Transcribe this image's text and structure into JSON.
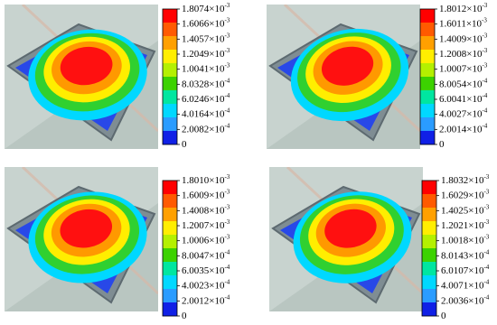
{
  "colorbar_colors": [
    "#ff0000",
    "#ff5a00",
    "#ffa000",
    "#ffee00",
    "#b4f000",
    "#3cd200",
    "#00e6a0",
    "#00d8ff",
    "#2a9cff",
    "#1020e6"
  ],
  "panels": [
    {
      "labels": [
        {
          "text": "1.8074×10",
          "sup": "-3"
        },
        {
          "text": "1.6066×10",
          "sup": "-3"
        },
        {
          "text": "1.4057×10",
          "sup": "-3"
        },
        {
          "text": "1.2049×10",
          "sup": "-3"
        },
        {
          "text": "1.0041×10",
          "sup": "-3"
        },
        {
          "text": "8.0328×10",
          "sup": "-4"
        },
        {
          "text": "6.0246×10",
          "sup": "-4"
        },
        {
          "text": "4.0164×10",
          "sup": "-4"
        },
        {
          "text": "2.0082×10",
          "sup": "-4"
        },
        {
          "text": "0"
        }
      ]
    },
    {
      "labels": [
        {
          "text": "1.8012×10",
          "sup": "-3"
        },
        {
          "text": "1.6011×10",
          "sup": "-3"
        },
        {
          "text": "1.4009×10",
          "sup": "-3"
        },
        {
          "text": "1.2008×10",
          "sup": "-3"
        },
        {
          "text": "1.0007×10",
          "sup": "-3"
        },
        {
          "text": "8.0054×10",
          "sup": "-4"
        },
        {
          "text": "6.0041×10",
          "sup": "-4"
        },
        {
          "text": "4.0027×10",
          "sup": "-4"
        },
        {
          "text": "2.0014×10",
          "sup": "-4"
        },
        {
          "text": "0"
        }
      ]
    },
    {
      "labels": [
        {
          "text": "1.8010×10",
          "sup": "-3"
        },
        {
          "text": "1.6009×10",
          "sup": "-3"
        },
        {
          "text": "1.4008×10",
          "sup": "-3"
        },
        {
          "text": "1.2007×10",
          "sup": "-3"
        },
        {
          "text": "1.0006×10",
          "sup": "-3"
        },
        {
          "text": "8.0047×10",
          "sup": "-4"
        },
        {
          "text": "6.0035×10",
          "sup": "-4"
        },
        {
          "text": "4.0023×10",
          "sup": "-4"
        },
        {
          "text": "2.0012×10",
          "sup": "-4"
        },
        {
          "text": "0"
        }
      ]
    },
    {
      "labels": [
        {
          "text": "1.8032×10",
          "sup": "-3"
        },
        {
          "text": "1.6029×10",
          "sup": "-3"
        },
        {
          "text": "1.4025×10",
          "sup": "-3"
        },
        {
          "text": "1.2021×10",
          "sup": "-3"
        },
        {
          "text": "1.0018×10",
          "sup": "-3"
        },
        {
          "text": "8.0143×10",
          "sup": "-4"
        },
        {
          "text": "6.0107×10",
          "sup": "-4"
        },
        {
          "text": "4.0071×10",
          "sup": "-4"
        },
        {
          "text": "2.0036×10",
          "sup": "-4"
        },
        {
          "text": "0"
        }
      ]
    }
  ]
}
